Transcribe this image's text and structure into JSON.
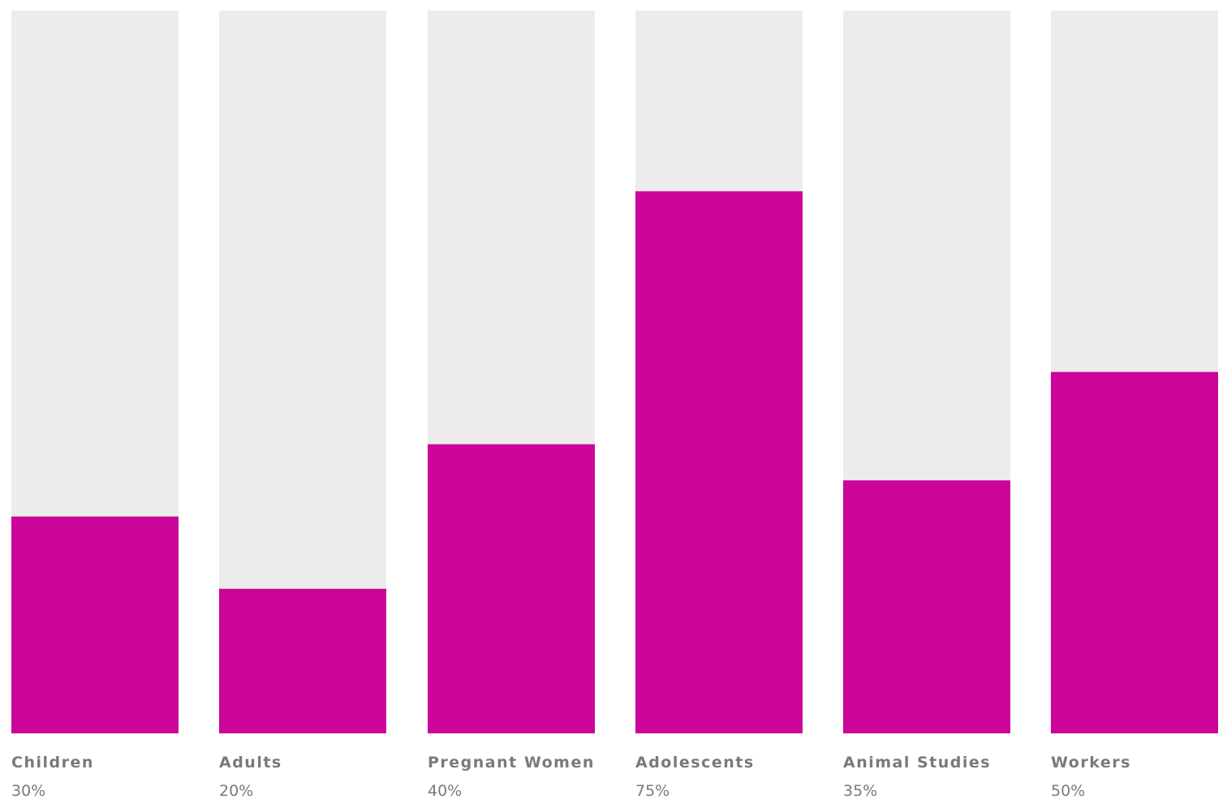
{
  "chart_data": {
    "type": "bar",
    "categories": [
      "Children",
      "Adults",
      "Pregnant Women",
      "Adolescents",
      "Animal Studies",
      "Workers"
    ],
    "values": [
      30,
      20,
      40,
      75,
      35,
      50
    ],
    "value_labels": [
      "30%",
      "20%",
      "40%",
      "75%",
      "35%",
      "50%"
    ],
    "ylim": [
      0,
      100
    ],
    "grid": false,
    "legend": "none",
    "colors": {
      "bar": "#cb0599",
      "track": "#ececec",
      "text": "#7a7a7a"
    }
  }
}
